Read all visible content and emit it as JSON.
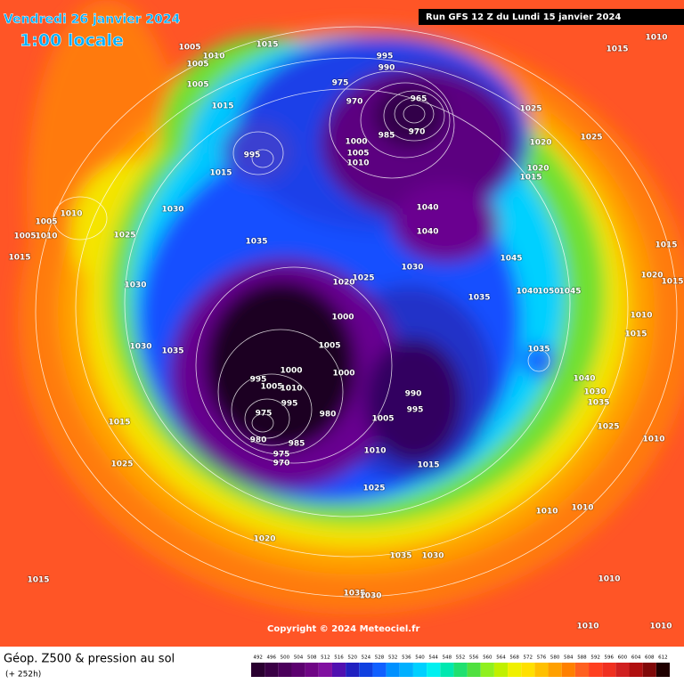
{
  "header": {
    "date": "Vendredi 26 janvier 2024",
    "time": "1:00 locale",
    "run": "Run GFS 12 Z du Lundi 15 janvier 2024"
  },
  "map": {
    "isobars": [
      "1005",
      "1010",
      "1005",
      "1005",
      "1015",
      "995",
      "990",
      "975",
      "970",
      "965",
      "985",
      "970",
      "1000",
      "1005",
      "1010",
      "995",
      "1015",
      "1015",
      "1025",
      "1020",
      "1025",
      "1020",
      "1015",
      "1030",
      "1040",
      "1040",
      "1010",
      "1005",
      "1005",
      "1010",
      "1025",
      "1015",
      "1035",
      "1030",
      "1045",
      "1030",
      "1025",
      "1020",
      "1035",
      "1040",
      "1050",
      "1045",
      "1015",
      "1020",
      "1015",
      "1010",
      "1015",
      "1000",
      "1005",
      "1030",
      "1035",
      "1035",
      "1000",
      "1000",
      "995",
      "1005",
      "1010",
      "990",
      "995",
      "995",
      "980",
      "975",
      "1005",
      "980",
      "985",
      "975",
      "970",
      "1015",
      "1025",
      "1010",
      "1015",
      "1025",
      "1010",
      "1010",
      "1020",
      "1035",
      "1030",
      "1015",
      "1035",
      "1030",
      "1010",
      "1010",
      "1010",
      "1040",
      "1030",
      "1035",
      "1025",
      "1010",
      "1010",
      "1015"
    ],
    "copyright": "Copyright © 2024 Meteociel.fr"
  },
  "footer": {
    "title": "Géop. Z500 & pression au sol",
    "lead": "(+ 252h)",
    "scale": [
      492,
      496,
      500,
      504,
      508,
      512,
      516,
      520,
      524,
      528,
      532,
      536,
      540,
      544,
      548,
      552,
      556,
      560,
      564,
      568,
      572,
      576,
      580,
      584,
      588,
      592,
      596,
      600,
      604,
      608,
      612
    ]
  }
}
